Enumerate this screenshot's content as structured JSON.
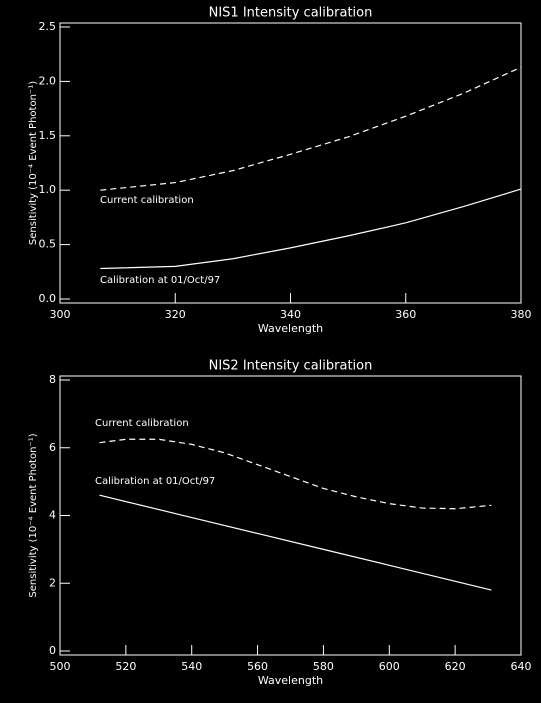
{
  "chart_data": [
    {
      "type": "line",
      "title": "NIS1 Intensity calibration",
      "x_label": "Wavelength",
      "y_label": "Sensitivity (10⁻⁴ Event Photon⁻¹)",
      "xlim": [
        300,
        380
      ],
      "xticks": [
        300,
        320,
        340,
        360,
        380
      ],
      "ylim": [
        0,
        2.5
      ],
      "yticks": [
        {
          "value": 0,
          "label": "0.0"
        },
        {
          "value": 0.5,
          "label": "0.5"
        },
        {
          "value": 1,
          "label": "1.0"
        },
        {
          "value": 1.5,
          "label": "1.5"
        },
        {
          "value": 2,
          "label": "2.0"
        },
        {
          "value": 2.5,
          "label": "2.5"
        }
      ],
      "series": [
        {
          "name": "Current calibration",
          "color": "#ffffff",
          "style": "dashed",
          "x": [
            307,
            320,
            330,
            340,
            350,
            360,
            370,
            380
          ],
          "values": [
            1.0,
            1.07,
            1.18,
            1.33,
            1.49,
            1.68,
            1.89,
            2.13
          ]
        },
        {
          "name": "Calibration at 01/Oct/97",
          "color": "#ffffff",
          "style": "solid",
          "x": [
            307,
            320,
            330,
            340,
            350,
            360,
            370,
            380
          ],
          "values": [
            0.28,
            0.3,
            0.37,
            0.47,
            0.58,
            0.7,
            0.85,
            1.01
          ]
        }
      ]
    },
    {
      "type": "line",
      "title": "NIS2 Intensity calibration",
      "x_label": "Wavelength",
      "y_label": "Sensitivity (10⁻⁴ Event Photon⁻¹)",
      "xlim": [
        500,
        640
      ],
      "xticks": [
        500,
        520,
        540,
        560,
        580,
        600,
        620,
        640
      ],
      "ylim": [
        0,
        8
      ],
      "yticks": [
        0,
        2,
        4,
        6,
        8
      ],
      "series": [
        {
          "name": "Current calibration",
          "color": "#ffffff",
          "style": "dashed",
          "x": [
            512,
            520,
            530,
            540,
            550,
            560,
            570,
            580,
            590,
            600,
            610,
            620,
            631
          ],
          "values": [
            6.15,
            6.25,
            6.25,
            6.1,
            5.85,
            5.5,
            5.15,
            4.8,
            4.55,
            4.35,
            4.22,
            4.2,
            4.3
          ]
        },
        {
          "name": "Calibration at 01/Oct/97",
          "color": "#ffffff",
          "style": "solid",
          "x": [
            512,
            540,
            560,
            580,
            600,
            631
          ],
          "values": [
            4.6,
            3.94,
            3.47,
            3.0,
            2.53,
            1.8
          ]
        }
      ]
    }
  ]
}
